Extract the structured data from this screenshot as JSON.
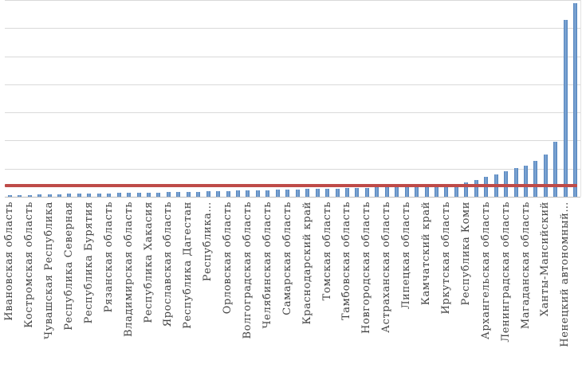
{
  "chart_data": {
    "type": "bar",
    "title": "",
    "xlabel": "",
    "ylabel": "",
    "y_tick_labels_visible": false,
    "ylim": [
      0,
      7
    ],
    "gridline_interval": 1,
    "grid_on": true,
    "legend": "none",
    "bar_count": 58,
    "tick_label_every": 2,
    "colors": {
      "bar": "#4f81bd",
      "reference_line": "#be4b48",
      "gridline": "#d9d9d9",
      "axis": "#bfbfbf",
      "label_text": "#444444",
      "background": "#ffffff"
    },
    "reference_line_value": 0.4,
    "values": [
      0.06,
      0.07,
      0.07,
      0.08,
      0.08,
      0.09,
      0.1,
      0.1,
      0.11,
      0.11,
      0.12,
      0.13,
      0.13,
      0.14,
      0.15,
      0.15,
      0.16,
      0.16,
      0.17,
      0.18,
      0.19,
      0.2,
      0.21,
      0.22,
      0.23,
      0.24,
      0.24,
      0.25,
      0.25,
      0.26,
      0.27,
      0.27,
      0.28,
      0.29,
      0.3,
      0.31,
      0.32,
      0.33,
      0.34,
      0.36,
      0.37,
      0.38,
      0.4,
      0.41,
      0.42,
      0.44,
      0.52,
      0.6,
      0.7,
      0.8,
      0.92,
      1.03,
      1.1,
      1.28,
      1.5,
      1.95,
      6.3,
      6.9
    ],
    "tick_labels": [
      "Ивановская область",
      "Костромская область",
      "Чувашская Республика",
      "Республика Северная",
      "Республика Бурятия",
      "Рязанская область",
      "Владимирская область",
      "Республика Хакасия",
      "Ярославская область",
      "Республика Дагестан",
      "Республика…",
      "Орловская область",
      "Волгоградская область",
      "Челябинская область",
      "Самарская область",
      "Краснодарский край",
      "Томская область",
      "Тамбовская область",
      "Новгородская область",
      "Астраханская область",
      "Липецкая область",
      "Камчатский край",
      "Иркутская область",
      "Республика Коми",
      "Архангельская область",
      "Ленинградская область",
      "Магаданская область",
      "Ханты-Мансийский",
      "Ненецкий автономный…"
    ]
  }
}
